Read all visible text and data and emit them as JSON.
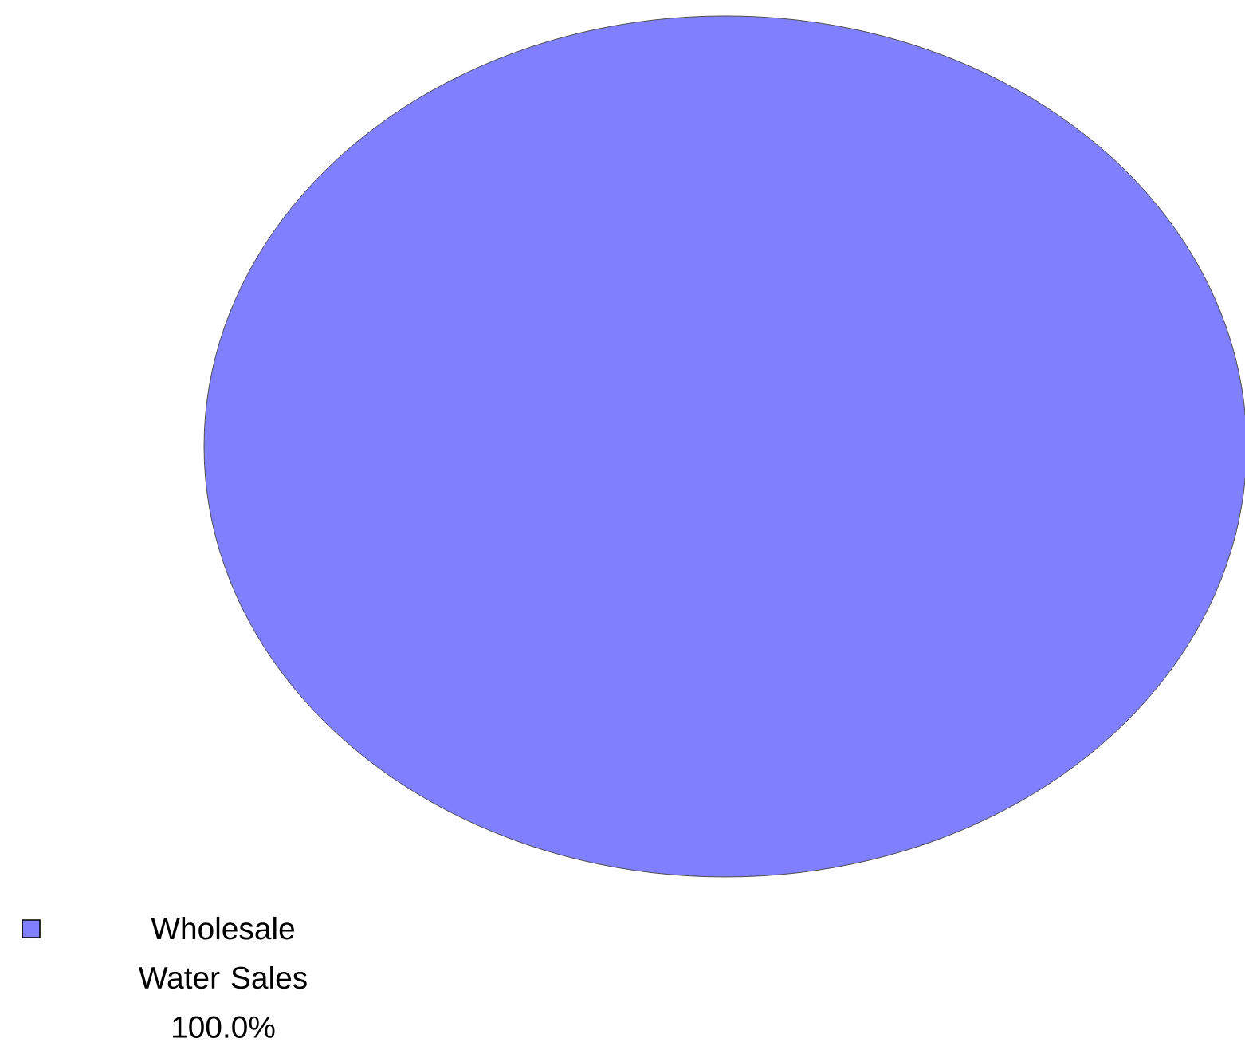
{
  "chart_data": {
    "type": "pie",
    "categories": [
      "Wholesale Water Sales"
    ],
    "values": [
      100.0
    ],
    "value_labels": [
      "100.0%"
    ],
    "colors": [
      "#8080ff"
    ]
  }
}
